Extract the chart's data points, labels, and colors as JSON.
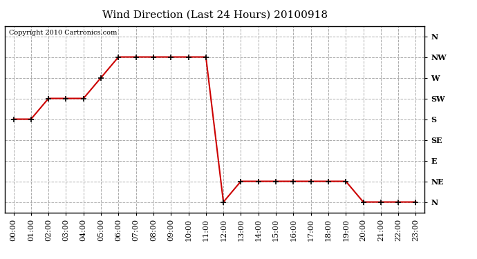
{
  "title": "Wind Direction (Last 24 Hours) 20100918",
  "copyright_text": "Copyright 2010 Cartronics.com",
  "line_color": "#cc0000",
  "marker": "+",
  "marker_color": "#000000",
  "background_color": "#ffffff",
  "plot_bg_color": "#ffffff",
  "grid_color": "#aaaaaa",
  "grid_style": "--",
  "ytick_positions": [
    1,
    2,
    3,
    4,
    5,
    6,
    7,
    8,
    9
  ],
  "ytick_labels": [
    "N",
    "NE",
    "E",
    "SE",
    "S",
    "SW",
    "W",
    "NW",
    "N"
  ],
  "hours": [
    0,
    1,
    2,
    3,
    4,
    5,
    6,
    7,
    8,
    9,
    10,
    11,
    12,
    13,
    14,
    15,
    16,
    17,
    18,
    19,
    20,
    21,
    22,
    23
  ],
  "wind_values": [
    5,
    5,
    6,
    6,
    6,
    7,
    8,
    8,
    8,
    8,
    8,
    8,
    1,
    2,
    2,
    2,
    2,
    2,
    2,
    2,
    1,
    1,
    1,
    1
  ],
  "xlim": [
    -0.5,
    23.5
  ],
  "ylim": [
    0.5,
    9.5
  ],
  "title_fontsize": 11,
  "tick_fontsize": 8,
  "copyright_fontsize": 7
}
